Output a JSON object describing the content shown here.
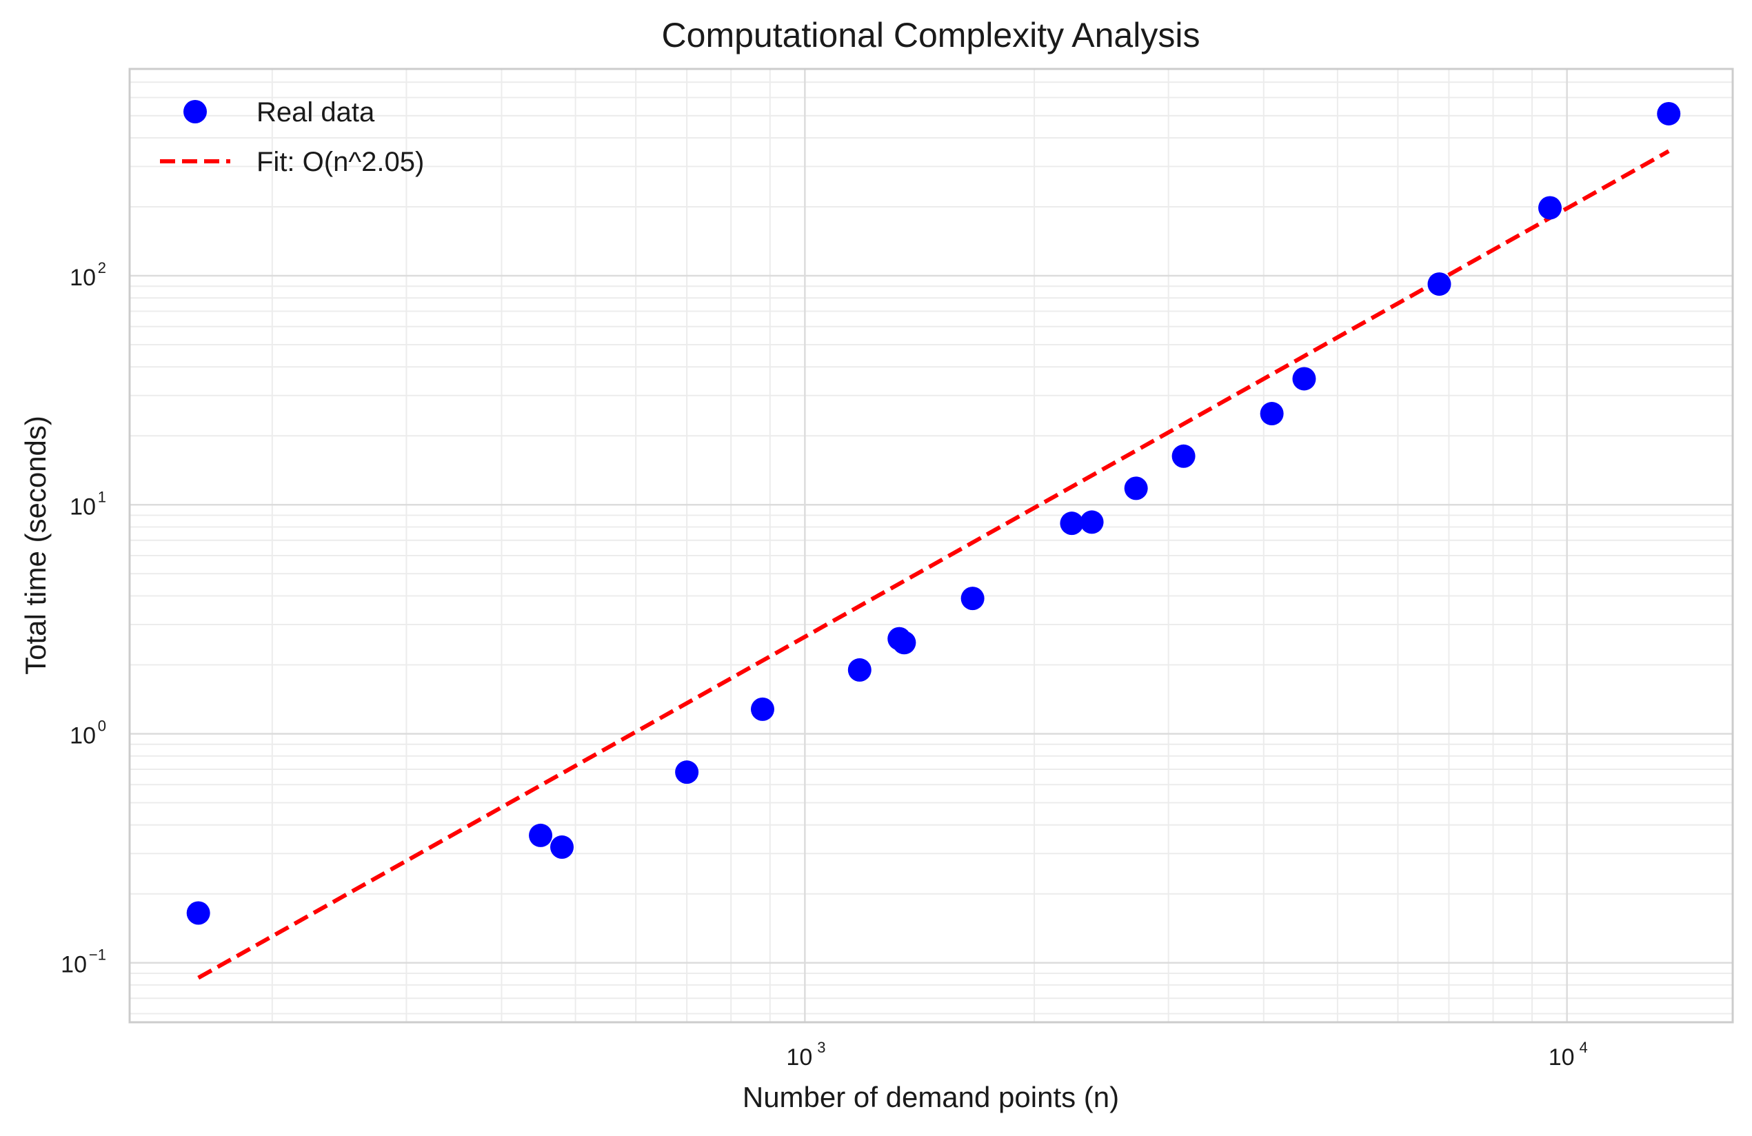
{
  "chart_data": {
    "type": "scatter",
    "title": "Computational Complexity Analysis",
    "xlabel": "Number of demand points (n)",
    "ylabel": "Total time (seconds)",
    "xscale": "log",
    "yscale": "log",
    "xlim": [
      130,
      16500
    ],
    "ylim": [
      0.055,
      800
    ],
    "grid": true,
    "legend_position": "top-left",
    "x_ticks": [
      {
        "base": "10",
        "exp": "3",
        "value": 1000
      },
      {
        "base": "10",
        "exp": "4",
        "value": 10000
      }
    ],
    "y_ticks": [
      {
        "base": "10",
        "exp": "−1",
        "value": 0.1
      },
      {
        "base": "10",
        "exp": "0",
        "value": 1
      },
      {
        "base": "10",
        "exp": "1",
        "value": 10
      },
      {
        "base": "10",
        "exp": "2",
        "value": 100
      }
    ],
    "series": [
      {
        "name": "Real data",
        "kind": "scatter",
        "color": "#0000ff",
        "points": [
          [
            160,
            0.165
          ],
          [
            450,
            0.36
          ],
          [
            480,
            0.32
          ],
          [
            700,
            0.68
          ],
          [
            880,
            1.28
          ],
          [
            1180,
            1.9
          ],
          [
            1330,
            2.6
          ],
          [
            1350,
            2.5
          ],
          [
            1660,
            3.9
          ],
          [
            2240,
            8.3
          ],
          [
            2380,
            8.4
          ],
          [
            2720,
            11.8
          ],
          [
            3140,
            16.3
          ],
          [
            4100,
            25
          ],
          [
            4520,
            35.5
          ],
          [
            6800,
            92
          ],
          [
            9500,
            198
          ],
          [
            13600,
            510
          ]
        ]
      },
      {
        "name": "Fit: O(n^2.05)",
        "kind": "line",
        "color": "#ff0000",
        "dash": "dashed",
        "points": [
          [
            160,
            0.086
          ],
          [
            13600,
            350
          ]
        ]
      }
    ]
  }
}
